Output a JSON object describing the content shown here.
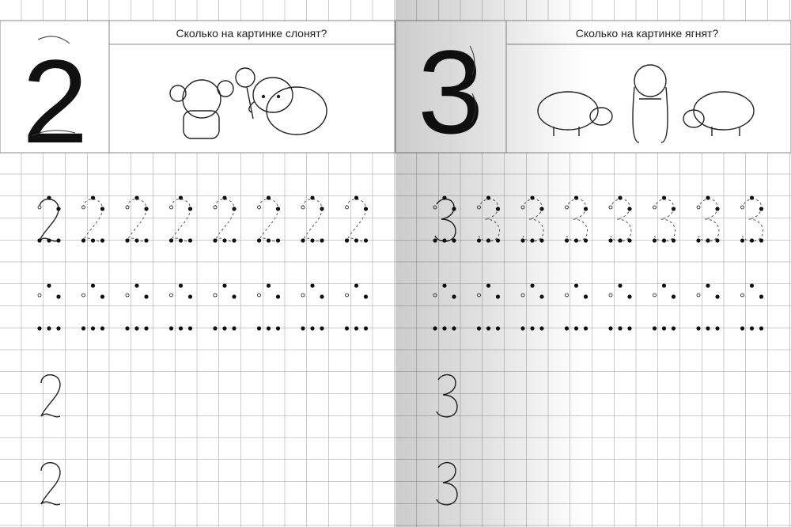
{
  "left_page": {
    "digit": "2",
    "question": "Сколько на картинке слонят?",
    "picture": "two-baby-elephants"
  },
  "right_page": {
    "digit": "3",
    "question": "Сколько на картинке ягнят?",
    "picture": "three-lambs"
  },
  "colors": {
    "grid": "#9a9a9a",
    "ink": "#111111",
    "spine_shadow": "#cfcfcf"
  }
}
